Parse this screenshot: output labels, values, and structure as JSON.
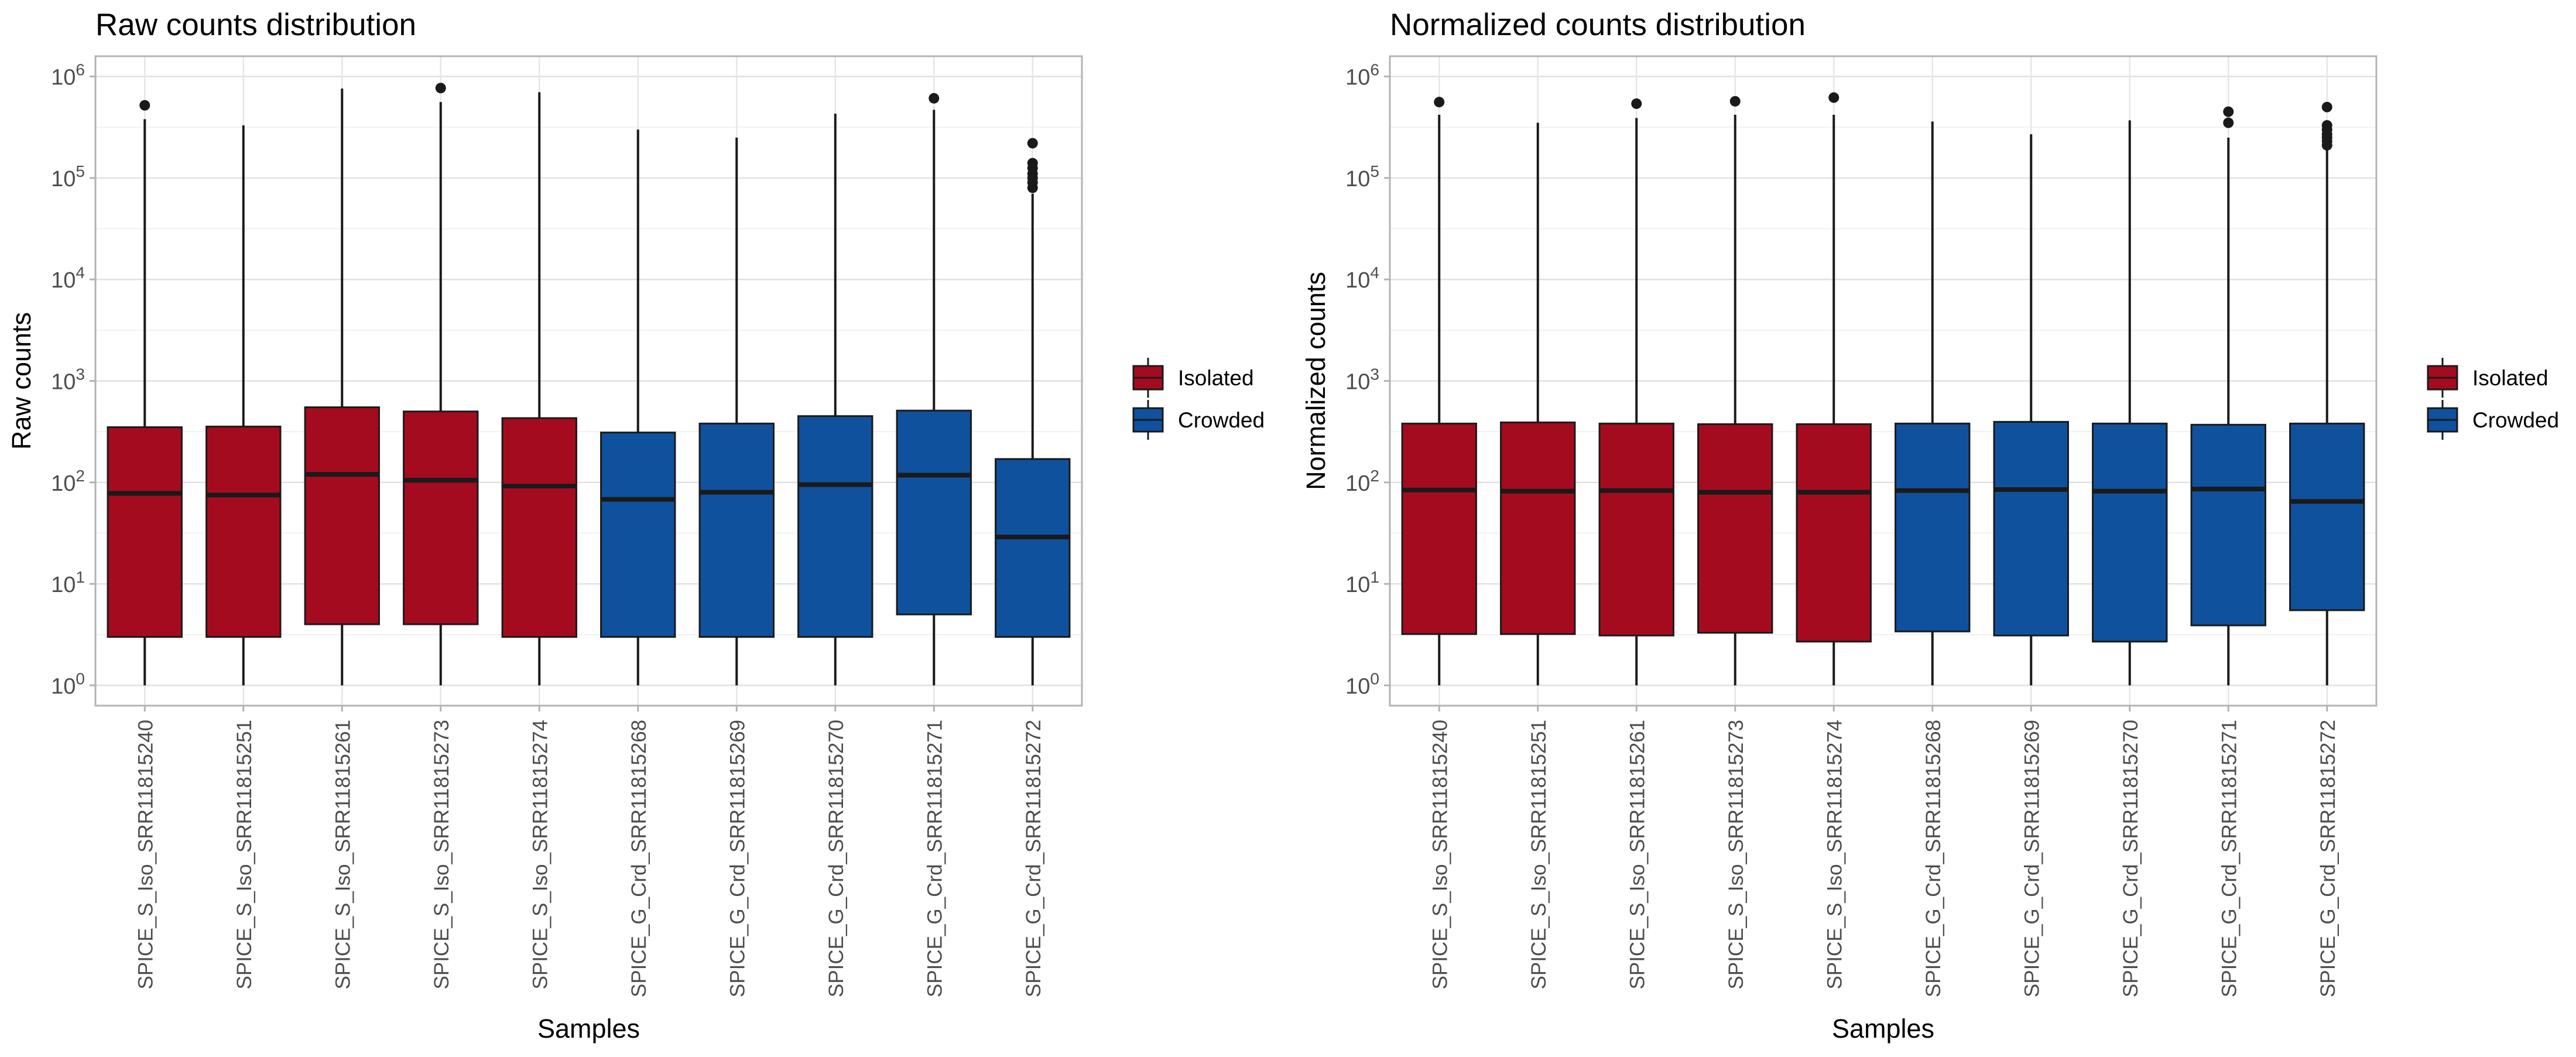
{
  "legend": {
    "items": [
      {
        "label": "Isolated",
        "color": "#A50B1F"
      },
      {
        "label": "Crowded",
        "color": "#10519E"
      }
    ]
  },
  "chart_data": [
    {
      "type": "box",
      "title": "Raw counts distribution",
      "xlabel": "Samples",
      "ylabel": "Raw counts",
      "yscale": "log10",
      "ylim_exp": [
        -0.2,
        6.2
      ],
      "y_tick_exponents": [
        0,
        1,
        2,
        3,
        4,
        5,
        6
      ],
      "grid": true,
      "legend_position": "right",
      "categories": [
        "SPICE_S_Iso_SRR11815240",
        "SPICE_S_Iso_SRR11815251",
        "SPICE_S_Iso_SRR11815261",
        "SPICE_S_Iso_SRR11815273",
        "SPICE_S_Iso_SRR11815274",
        "SPICE_G_Crd_SRR11815268",
        "SPICE_G_Crd_SRR11815269",
        "SPICE_G_Crd_SRR11815270",
        "SPICE_G_Crd_SRR11815271",
        "SPICE_G_Crd_SRR11815272"
      ],
      "groups": [
        "Isolated",
        "Isolated",
        "Isolated",
        "Isolated",
        "Isolated",
        "Crowded",
        "Crowded",
        "Crowded",
        "Crowded",
        "Crowded"
      ],
      "boxes": [
        {
          "min": 1,
          "q1": 3,
          "median": 78,
          "q3": 350,
          "max": 380000,
          "outliers": [
            520000
          ]
        },
        {
          "min": 1,
          "q1": 3,
          "median": 75,
          "q3": 355,
          "max": 330000,
          "outliers": []
        },
        {
          "min": 1,
          "q1": 4,
          "median": 120,
          "q3": 550,
          "max": 760000,
          "outliers": []
        },
        {
          "min": 1,
          "q1": 4,
          "median": 105,
          "q3": 500,
          "max": 560000,
          "outliers": [
            770000
          ]
        },
        {
          "min": 1,
          "q1": 3,
          "median": 92,
          "q3": 430,
          "max": 700000,
          "outliers": []
        },
        {
          "min": 1,
          "q1": 3,
          "median": 68,
          "q3": 310,
          "max": 300000,
          "outliers": []
        },
        {
          "min": 1,
          "q1": 3,
          "median": 80,
          "q3": 380,
          "max": 250000,
          "outliers": []
        },
        {
          "min": 1,
          "q1": 3,
          "median": 95,
          "q3": 450,
          "max": 430000,
          "outliers": []
        },
        {
          "min": 1,
          "q1": 5,
          "median": 118,
          "q3": 510,
          "max": 470000,
          "outliers": [
            610000
          ]
        },
        {
          "min": 1,
          "q1": 3,
          "median": 29,
          "q3": 170,
          "max": 70000,
          "outliers": [
            80000,
            90000,
            100000,
            110000,
            125000,
            140000,
            220000
          ]
        }
      ]
    },
    {
      "type": "box",
      "title": "Normalized counts distribution",
      "xlabel": "Samples",
      "ylabel": "Normalized counts",
      "yscale": "log10",
      "ylim_exp": [
        -0.2,
        6.2
      ],
      "y_tick_exponents": [
        0,
        1,
        2,
        3,
        4,
        5,
        6
      ],
      "grid": true,
      "legend_position": "right",
      "categories": [
        "SPICE_S_Iso_SRR11815240",
        "SPICE_S_Iso_SRR11815251",
        "SPICE_S_Iso_SRR11815261",
        "SPICE_S_Iso_SRR11815273",
        "SPICE_S_Iso_SRR11815274",
        "SPICE_G_Crd_SRR11815268",
        "SPICE_G_Crd_SRR11815269",
        "SPICE_G_Crd_SRR11815270",
        "SPICE_G_Crd_SRR11815271",
        "SPICE_G_Crd_SRR11815272"
      ],
      "groups": [
        "Isolated",
        "Isolated",
        "Isolated",
        "Isolated",
        "Isolated",
        "Crowded",
        "Crowded",
        "Crowded",
        "Crowded",
        "Crowded"
      ],
      "boxes": [
        {
          "min": 1,
          "q1": 3.2,
          "median": 84,
          "q3": 380,
          "max": 420000,
          "outliers": [
            560000
          ]
        },
        {
          "min": 1,
          "q1": 3.2,
          "median": 82,
          "q3": 390,
          "max": 350000,
          "outliers": []
        },
        {
          "min": 1,
          "q1": 3.1,
          "median": 83,
          "q3": 380,
          "max": 390000,
          "outliers": [
            540000
          ]
        },
        {
          "min": 1,
          "q1": 3.3,
          "median": 80,
          "q3": 375,
          "max": 420000,
          "outliers": [
            570000
          ]
        },
        {
          "min": 1,
          "q1": 2.7,
          "median": 80,
          "q3": 375,
          "max": 420000,
          "outliers": [
            620000
          ]
        },
        {
          "min": 1,
          "q1": 3.4,
          "median": 83,
          "q3": 380,
          "max": 360000,
          "outliers": []
        },
        {
          "min": 1,
          "q1": 3.1,
          "median": 85,
          "q3": 395,
          "max": 270000,
          "outliers": []
        },
        {
          "min": 1,
          "q1": 2.7,
          "median": 82,
          "q3": 380,
          "max": 370000,
          "outliers": []
        },
        {
          "min": 1,
          "q1": 3.9,
          "median": 86,
          "q3": 370,
          "max": 250000,
          "outliers": [
            350000,
            450000
          ]
        },
        {
          "min": 1,
          "q1": 5.5,
          "median": 65,
          "q3": 380,
          "max": 200000,
          "outliers": [
            210000,
            230000,
            250000,
            270000,
            300000,
            330000,
            500000
          ]
        }
      ]
    }
  ]
}
